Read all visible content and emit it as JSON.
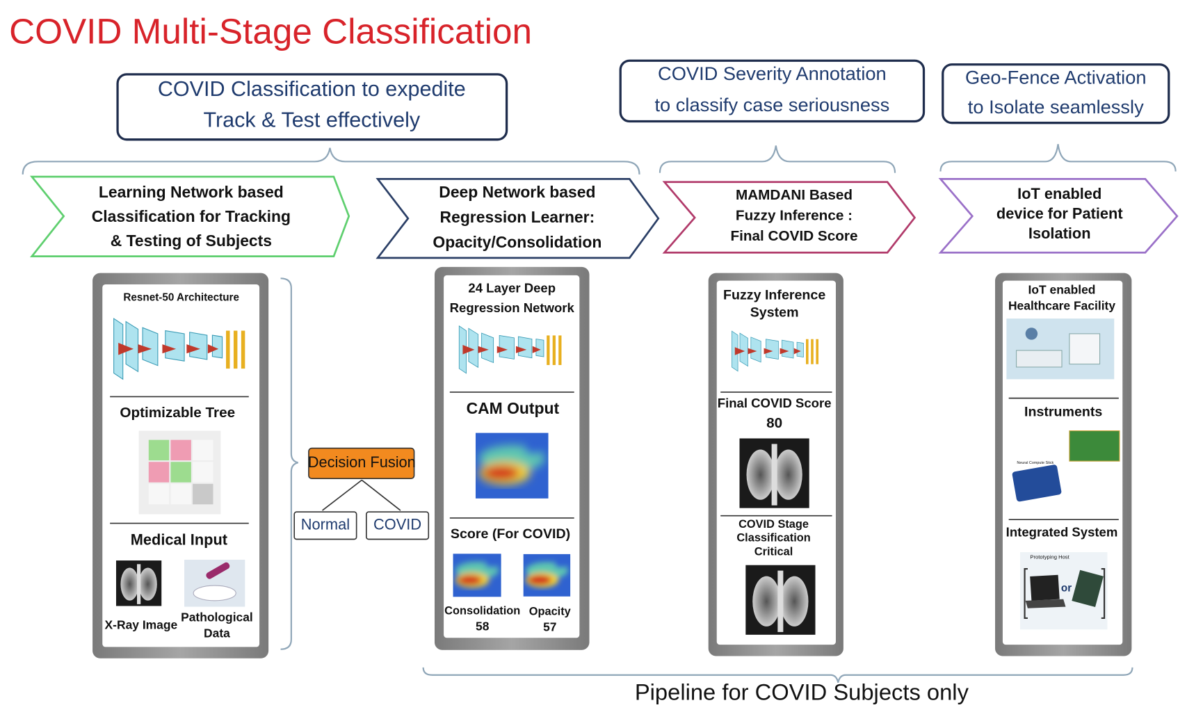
{
  "title": "COVID Multi-Stage Classification",
  "objectives": [
    [
      "COVID Classification to expedite",
      "Track & Test effectively"
    ],
    [
      "COVID Severity Annotation",
      "to classify case seriousness"
    ],
    [
      "Geo-Fence Activation",
      "to Isolate seamlessly"
    ]
  ],
  "stages": [
    [
      "Learning Network based",
      "Classification for Tracking",
      "& Testing of Subjects"
    ],
    [
      "Deep Network based",
      "Regression Learner:",
      "Opacity/Consolidation"
    ],
    [
      "MAMDANI Based",
      "Fuzzy Inference :",
      "Final COVID Score"
    ],
    [
      "IoT enabled",
      "device for Patient",
      "Isolation"
    ]
  ],
  "classification_panel": {
    "architecture": "Resnet-50 Architecture",
    "tree": "Optimizable Tree",
    "input": "Medical Input",
    "xray": "X-Ray Image",
    "pathological": [
      "Pathological",
      "Data"
    ]
  },
  "decision": {
    "label": "Decision Fusion",
    "outcomes": [
      "Normal",
      "COVID"
    ]
  },
  "regression_panel": {
    "network": [
      "24 Layer Deep",
      "Regression Network"
    ],
    "cam": "CAM Output",
    "score_heading": "Score (For COVID)",
    "scores": [
      {
        "label": "Consolidation",
        "value": 58
      },
      {
        "label": "Opacity",
        "value": 57
      }
    ]
  },
  "fuzzy_panel": {
    "system": [
      "Fuzzy Inference",
      "System"
    ],
    "score_heading": "Final COVID Score",
    "score": 80,
    "stage": [
      "COVID Stage",
      "Classification",
      "Critical"
    ]
  },
  "iot_panel": {
    "facility": [
      "IoT enabled",
      "Healthcare Facility"
    ],
    "instruments": "Instruments",
    "neural_stick": "Neural Compute Stick",
    "integrated": "Integrated System",
    "host": "Prototyping Host",
    "or": "or"
  },
  "footer": "Pipeline for COVID Subjects only"
}
